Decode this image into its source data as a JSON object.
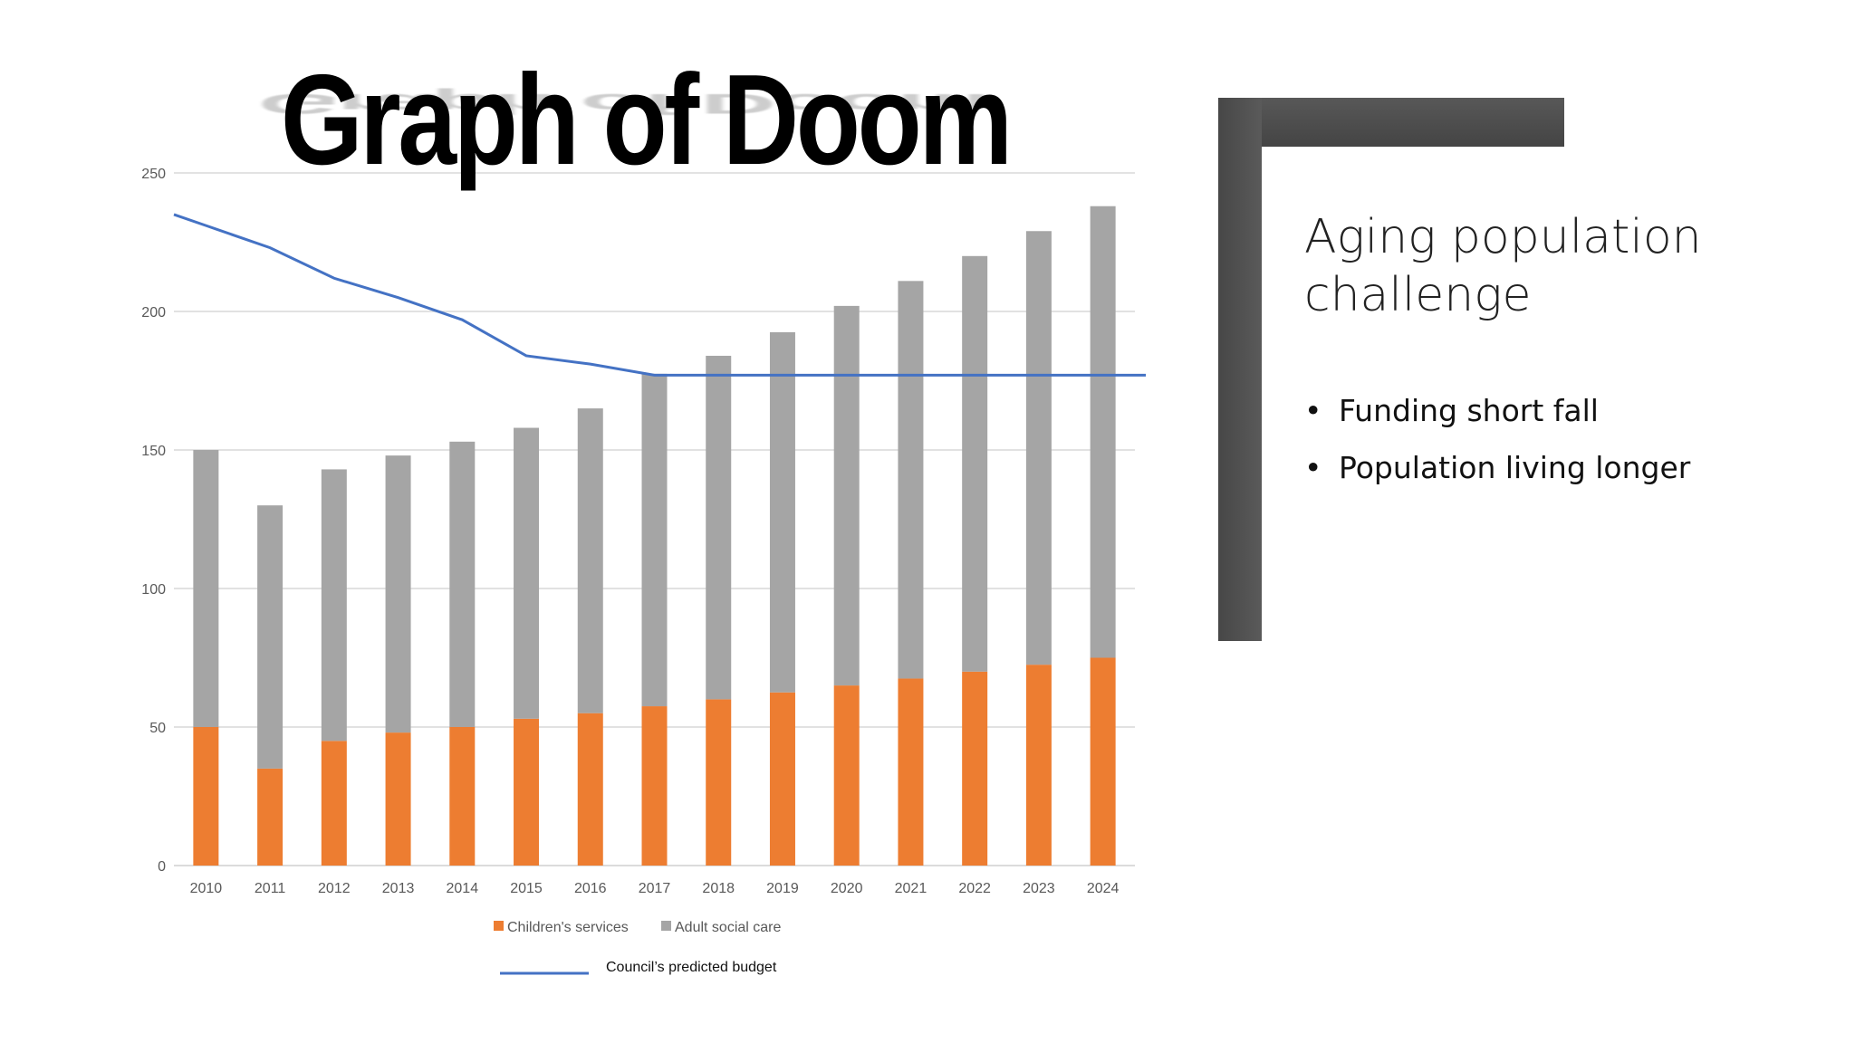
{
  "slide": {
    "title": "Graph of Doom",
    "side_heading": "Aging population challenge",
    "bullets": [
      "Funding short fall",
      "Population living longer"
    ]
  },
  "colors": {
    "children": "#ED7D31",
    "adult": "#A5A5A5",
    "budget_line": "#4472C4",
    "bracket": "#4d4d4d"
  },
  "chart_data": {
    "type": "bar",
    "stacked": true,
    "categories": [
      "2010",
      "2011",
      "2012",
      "2013",
      "2014",
      "2015",
      "2016",
      "2017",
      "2018",
      "2019",
      "2020",
      "2021",
      "2022",
      "2023",
      "2024"
    ],
    "series": [
      {
        "name": "Children's services",
        "color": "#ED7D31",
        "values": [
          50,
          35,
          45,
          48,
          50,
          53,
          55,
          57.5,
          60,
          62.5,
          65,
          67.5,
          70,
          72.5,
          75
        ]
      },
      {
        "name": "Adult social care",
        "color": "#A5A5A5",
        "values": [
          100,
          95,
          98,
          100,
          103,
          105,
          110,
          120,
          124,
          130,
          137,
          143.5,
          150,
          156.5,
          163
        ]
      }
    ],
    "line": {
      "name": "Council’s predicted budget",
      "color": "#4472C4",
      "values": [
        231,
        223,
        212,
        205,
        197,
        184,
        181,
        177,
        177,
        177,
        177,
        177,
        177,
        177,
        177
      ]
    },
    "ylim": [
      0,
      250
    ],
    "yticks": [
      0,
      50,
      100,
      150,
      200,
      250
    ],
    "grid": true,
    "legend": "bottom"
  }
}
